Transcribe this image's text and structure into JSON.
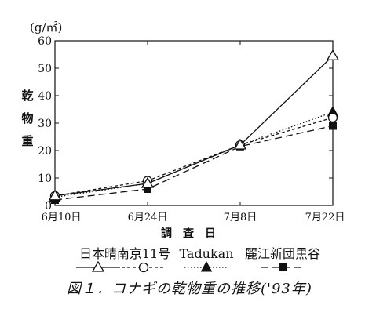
{
  "chart_data": {
    "type": "line",
    "unit_label": "(g/㎡)",
    "ylabel": "乾物重",
    "xlabel": "調査日",
    "categories": [
      "6月10日",
      "6月24日",
      "7月8日",
      "7月22日"
    ],
    "y_ticks": [
      0,
      10,
      20,
      30,
      40,
      50,
      60
    ],
    "ylim": [
      0,
      60
    ],
    "grid": false,
    "legend_position": "bottom",
    "series": [
      {
        "name": "日本晴",
        "values": [
          3.5,
          8.0,
          22.0,
          54.5
        ],
        "marker": "open-triangle",
        "line": "solid",
        "color": "#111111"
      },
      {
        "name": "南京11号",
        "values": [
          3.5,
          9.0,
          22.0,
          32.0
        ],
        "marker": "open-circle",
        "line": "short-dash",
        "color": "#111111"
      },
      {
        "name": "Tadukan",
        "values": [
          3.0,
          8.0,
          22.0,
          34.0
        ],
        "marker": "filled-triangle",
        "line": "dotted",
        "color": "#111111"
      },
      {
        "name": "麗江新団黒谷",
        "values": [
          2.0,
          6.0,
          21.5,
          29.0
        ],
        "marker": "filled-square",
        "line": "long-dash",
        "color": "#111111"
      }
    ]
  },
  "caption": "図１．コナギの乾物重の推移('93年)"
}
